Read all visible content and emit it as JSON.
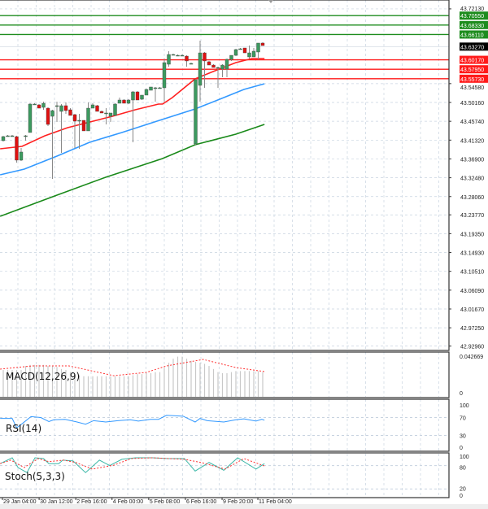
{
  "chart_data": [
    {
      "type": "candlestick",
      "price_axis": {
        "ticks": [
          "43.72130",
          "43.54580",
          "43.50160",
          "43.45740",
          "43.41320",
          "43.36900",
          "43.32480",
          "43.28060",
          "43.23770",
          "43.19350",
          "43.14930",
          "43.10510",
          "43.06090",
          "43.01670",
          "42.97250",
          "42.92960"
        ],
        "range": [
          42.9296,
          43.7213
        ]
      },
      "time_axis": {
        "ticks": [
          "29 Jan 04:00",
          "30 Jan 12:00",
          "2 Feb 16:00",
          "4 Feb 00:00",
          "5 Feb 08:00",
          "6 Feb 16:00",
          "9 Feb 20:00",
          "11 Feb 04:00"
        ],
        "tick_index": [
          0,
          8.2,
          16.4,
          24.5,
          32.7,
          40.9,
          49.1,
          57.1
        ]
      },
      "current_price": {
        "value": 43.6327,
        "label": "43.63270",
        "color": "#000000"
      },
      "levels": [
        {
          "value": 43.7055,
          "label": "43.70550",
          "color": "#1e8c1e"
        },
        {
          "value": 43.6833,
          "label": "43.68330",
          "color": "#1e8c1e"
        },
        {
          "value": 43.6611,
          "label": "43.66110",
          "color": "#1e8c1e"
        },
        {
          "value": 43.6017,
          "label": "43.60170",
          "color": "#ff1a1a"
        },
        {
          "value": 43.5795,
          "label": "43.57950",
          "color": "#ff1a1a"
        },
        {
          "value": 43.5573,
          "label": "43.55730",
          "color": "#ff1a1a"
        }
      ],
      "candles_ohlc": [
        [
          43.4119,
          43.4233,
          43.41,
          43.4214
        ],
        [
          43.4233,
          43.4252,
          43.4214,
          43.4233
        ],
        [
          43.4233,
          43.4252,
          43.4214,
          43.4233
        ],
        [
          43.4214,
          43.4233,
          43.3603,
          43.3661
        ],
        [
          43.3661,
          43.3947,
          43.3642,
          43.3852
        ],
        [
          43.4233,
          43.4252,
          43.4119,
          43.4233
        ],
        [
          43.431,
          43.4997,
          43.431,
          43.4978
        ],
        [
          43.4978,
          43.4997,
          43.4959,
          43.4978
        ],
        [
          43.4959,
          43.4978,
          43.4882,
          43.4882
        ],
        [
          43.4901,
          43.5035,
          43.4844,
          43.4997
        ],
        [
          43.4882,
          43.4901,
          43.4462,
          43.45
        ],
        [
          43.4691,
          43.4844,
          43.3222,
          43.4825
        ],
        [
          43.494,
          43.5035,
          43.4558,
          43.494
        ],
        [
          43.4806,
          43.4978,
          43.3832,
          43.494
        ],
        [
          43.494,
          43.5016,
          43.4749,
          43.4825
        ],
        [
          43.4844,
          43.4882,
          43.4711,
          43.4711
        ],
        [
          43.473,
          43.4749,
          43.3947,
          43.4577
        ],
        [
          43.4596,
          43.4749,
          43.3928,
          43.4596
        ],
        [
          43.4596,
          43.4596,
          43.4348,
          43.4348
        ],
        [
          43.4348,
          43.5016,
          43.4348,
          43.4882
        ],
        [
          43.4882,
          43.4997,
          43.4882,
          43.4959
        ],
        [
          43.494,
          43.4959,
          43.4806,
          43.4806
        ],
        [
          43.4806,
          43.4825,
          43.4768,
          43.4768
        ],
        [
          43.4768,
          43.4882,
          43.45,
          43.4768
        ],
        [
          43.4691,
          43.4768,
          43.4558,
          43.4768
        ],
        [
          43.4711,
          43.4997,
          43.4711,
          43.4978
        ],
        [
          43.4997,
          43.513,
          43.4997,
          43.5073
        ],
        [
          43.5073,
          43.5092,
          43.4997,
          43.4997
        ],
        [
          43.4997,
          43.5092,
          43.4978,
          43.5073
        ],
        [
          43.5073,
          43.5283,
          43.4081,
          43.5264
        ],
        [
          43.5264,
          43.5283,
          43.5073,
          43.5073
        ],
        [
          43.5092,
          43.5188,
          43.5073,
          43.5188
        ],
        [
          43.5188,
          43.534,
          43.5188,
          43.5321
        ],
        [
          43.5302,
          43.5379,
          43.5302,
          43.5379
        ],
        [
          43.536,
          43.5379,
          43.5035,
          43.536
        ],
        [
          43.536,
          43.5379,
          43.5341,
          43.536
        ],
        [
          43.536,
          43.6047,
          43.5035,
          43.5951
        ],
        [
          43.5913,
          43.6219,
          43.5856,
          43.6142
        ],
        [
          43.6142,
          43.6161,
          43.6123,
          43.6142
        ],
        [
          43.6123,
          43.6142,
          43.6104,
          43.6123
        ],
        [
          43.6123,
          43.6142,
          43.6104,
          43.6123
        ],
        [
          43.6104,
          43.6123,
          43.5856,
          43.599
        ],
        [
          43.5932,
          43.5951,
          43.5913,
          43.5932
        ],
        [
          43.4042,
          43.5551,
          43.4023,
          43.5551
        ],
        [
          43.5417,
          43.6467,
          43.5035,
          43.618
        ],
        [
          43.618,
          43.62,
          43.536,
          43.599
        ],
        [
          43.5971,
          43.599,
          43.5894,
          43.5894
        ],
        [
          43.5894,
          43.5913,
          43.5837,
          43.5837
        ],
        [
          43.5837,
          43.5856,
          43.536,
          43.5837
        ],
        [
          43.5799,
          43.5913,
          43.5608,
          43.5894
        ],
        [
          43.5799,
          43.6047,
          43.5608,
          43.6028
        ],
        [
          43.6028,
          43.6123,
          43.599,
          43.6123
        ],
        [
          43.6123,
          43.6276,
          43.6104,
          43.6257
        ],
        [
          43.6276,
          43.6295,
          43.6257,
          43.6276
        ],
        [
          43.6295,
          43.6295,
          43.618,
          43.618
        ],
        [
          43.6085,
          43.6352,
          43.6047,
          43.618
        ],
        [
          43.6085,
          43.6295,
          43.6085,
          43.6219
        ],
        [
          43.62,
          43.641,
          43.6028,
          43.641
        ],
        [
          43.641,
          43.6429,
          43.6352,
          43.6352
        ]
      ],
      "moving_averages": [
        {
          "color": "#ff2020",
          "points": [
            [
              -0.7,
              43.3928
            ],
            [
              4.2,
              43.3985
            ],
            [
              9.3,
              43.4233
            ],
            [
              14.4,
              43.4424
            ],
            [
              19.4,
              43.4558
            ],
            [
              24.4,
              43.4691
            ],
            [
              29.5,
              43.4844
            ],
            [
              34.7,
              43.4978
            ],
            [
              35.6,
              43.4978
            ],
            [
              37.8,
              43.513
            ],
            [
              42.9,
              43.557
            ],
            [
              46.9,
              43.5742
            ],
            [
              52,
              43.5951
            ],
            [
              55.6,
              43.6047
            ],
            [
              58.4,
              43.6047
            ]
          ]
        },
        {
          "color": "#3399ff",
          "points": [
            [
              -0.7,
              43.3317
            ],
            [
              4.7,
              43.3451
            ],
            [
              12,
              43.3756
            ],
            [
              19.3,
              43.4081
            ],
            [
              26.5,
              43.431
            ],
            [
              33.8,
              43.4558
            ],
            [
              42.9,
              43.4863
            ],
            [
              48.4,
              43.5092
            ],
            [
              53.8,
              43.5321
            ],
            [
              58.4,
              43.5455
            ]
          ]
        },
        {
          "color": "#1a8a1a",
          "points": [
            [
              -0.7,
              43.2343
            ],
            [
              12,
              43.284
            ],
            [
              22.9,
              43.326
            ],
            [
              35.6,
              43.3699
            ],
            [
              42.9,
              43.4023
            ],
            [
              52,
              43.4271
            ],
            [
              58.4,
              43.45
            ]
          ]
        }
      ],
      "bull_color": "#3c9a5f",
      "bear_color": "#e01010"
    },
    {
      "type": "bar",
      "name": "MACD(12,26,9)",
      "ticks": [
        "0.042669",
        "0"
      ],
      "range": [
        0,
        0.042669
      ],
      "histogram": [
        0.026,
        0.026,
        0.026,
        0.026,
        0.026,
        0.03,
        0.031,
        0.031,
        0.031,
        0.031,
        0.03,
        0.03,
        0.029,
        0.027,
        0.026,
        0.024,
        0.022,
        0.021,
        0.02,
        0.02,
        0.02,
        0.02,
        0.02,
        0.02,
        0.02,
        0.02,
        0.02,
        0.02,
        0.02,
        0.021,
        0.022,
        0.022,
        0.023,
        0.023,
        0.024,
        0.024,
        0.028,
        0.033,
        0.037,
        0.039,
        0.039,
        0.037,
        0.035,
        0.034,
        0.033,
        0.032,
        0.03,
        0.027,
        0.024,
        0.023,
        0.023,
        0.024,
        0.025,
        0.025,
        0.025,
        0.025,
        0.025,
        0.025,
        0.024
      ],
      "signal": [
        [
          -0.7,
          0.0269
        ],
        [
          6.5,
          0.03
        ],
        [
          14.7,
          0.03
        ],
        [
          24.7,
          0.0205
        ],
        [
          32,
          0.0237
        ],
        [
          36.5,
          0.03
        ],
        [
          44.7,
          0.0363
        ],
        [
          52,
          0.0284
        ],
        [
          58.4,
          0.0245
        ]
      ]
    },
    {
      "type": "line",
      "name": "RSI(14)",
      "ticks": [
        "100",
        "70",
        "30",
        "0"
      ],
      "range": [
        0,
        100
      ],
      "levels": [
        70,
        30
      ],
      "line": [
        [
          -0.7,
          68
        ],
        [
          2,
          68
        ],
        [
          3,
          47
        ],
        [
          4.2,
          56
        ],
        [
          6.2,
          72
        ],
        [
          8.4,
          70
        ],
        [
          10.2,
          61
        ],
        [
          11.3,
          65
        ],
        [
          13.8,
          66
        ],
        [
          16.5,
          60
        ],
        [
          18.4,
          55
        ],
        [
          20.2,
          63
        ],
        [
          22.9,
          60
        ],
        [
          25.6,
          63
        ],
        [
          28.4,
          65
        ],
        [
          30.2,
          62
        ],
        [
          32.9,
          66
        ],
        [
          34.7,
          66
        ],
        [
          36.5,
          75
        ],
        [
          40.2,
          73
        ],
        [
          42.9,
          60
        ],
        [
          44,
          68
        ],
        [
          45.6,
          63
        ],
        [
          49.3,
          60
        ],
        [
          52,
          65
        ],
        [
          53.8,
          67
        ],
        [
          56.5,
          62
        ],
        [
          57.8,
          66
        ],
        [
          58.4,
          64
        ]
      ]
    },
    {
      "type": "line",
      "name": "Stoch(5,3,3)",
      "ticks": [
        "100",
        "80",
        "20",
        "0"
      ],
      "range": [
        0,
        100
      ],
      "levels": [
        80,
        20
      ],
      "main": [
        [
          -0.7,
          85
        ],
        [
          2,
          100
        ],
        [
          3.3,
          75
        ],
        [
          5.3,
          62
        ],
        [
          7.1,
          100
        ],
        [
          9,
          98
        ],
        [
          10.2,
          85
        ],
        [
          12.4,
          85
        ],
        [
          13.3,
          94
        ],
        [
          15.6,
          92
        ],
        [
          18.4,
          62
        ],
        [
          21.5,
          94
        ],
        [
          23.8,
          80
        ],
        [
          26.5,
          96
        ],
        [
          29.6,
          100
        ],
        [
          33.3,
          100
        ],
        [
          36.9,
          98
        ],
        [
          40.5,
          98
        ],
        [
          42.9,
          66
        ],
        [
          46,
          88
        ],
        [
          49.3,
          68
        ],
        [
          52.4,
          100
        ],
        [
          56.5,
          71
        ],
        [
          58.4,
          85
        ]
      ],
      "signal": [
        [
          -0.7,
          85
        ],
        [
          1.7,
          94
        ],
        [
          4.7,
          75
        ],
        [
          7.8,
          98
        ],
        [
          10.2,
          90
        ],
        [
          13.5,
          94
        ],
        [
          16.2,
          88
        ],
        [
          19.9,
          71
        ],
        [
          24.7,
          81
        ],
        [
          28.6,
          98
        ],
        [
          33.3,
          100
        ],
        [
          40.5,
          96
        ],
        [
          44.2,
          88
        ],
        [
          49.6,
          71
        ],
        [
          53.8,
          98
        ],
        [
          58.4,
          79
        ]
      ]
    }
  ]
}
